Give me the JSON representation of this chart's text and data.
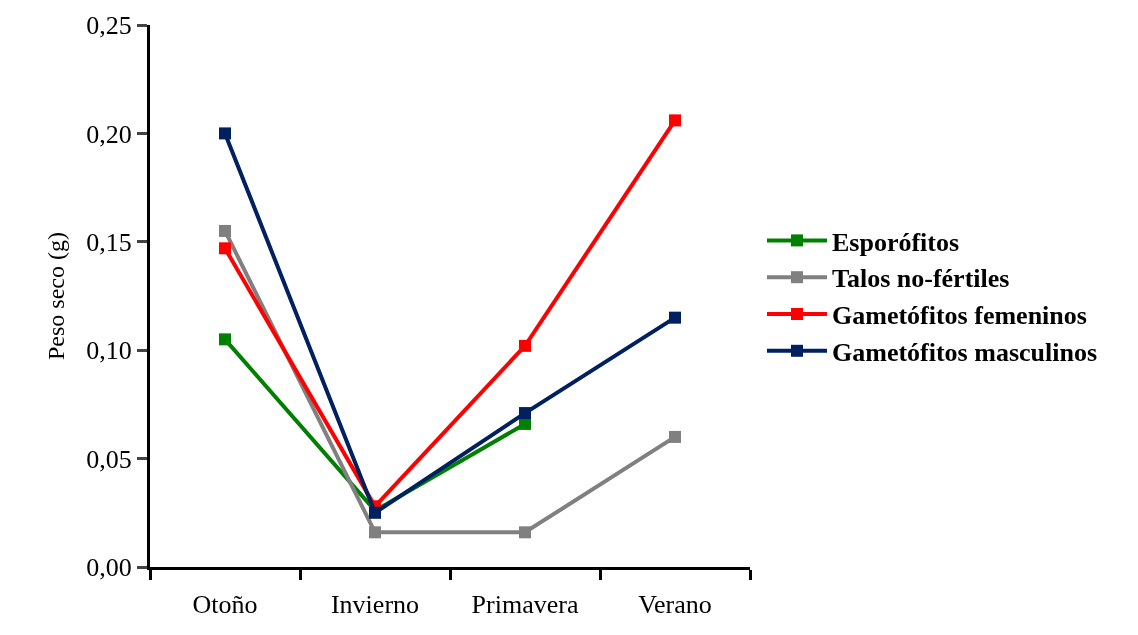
{
  "chart_data": {
    "type": "line",
    "ylabel": "Peso seco (g)",
    "categories": [
      "Otoño",
      "Invierno",
      "Primavera",
      "Verano"
    ],
    "series": [
      {
        "name": "Esporófitos",
        "color": "#008000",
        "values": [
          0.105,
          0.026,
          0.066,
          null
        ]
      },
      {
        "name": "Talos no-fértiles",
        "color": "#808080",
        "values": [
          0.155,
          0.016,
          0.016,
          0.06
        ]
      },
      {
        "name": "Gametófitos femeninos",
        "color": "#ff0000",
        "values": [
          0.147,
          0.028,
          0.102,
          0.206
        ]
      },
      {
        "name": "Gametófitos masculinos",
        "color": "#002060",
        "values": [
          0.2,
          0.025,
          0.071,
          0.115
        ]
      }
    ],
    "ylim": [
      0,
      0.25
    ],
    "yticks": [
      {
        "value": 0,
        "label": "0,00"
      },
      {
        "value": 0.05,
        "label": "0,05"
      },
      {
        "value": 0.1,
        "label": "0,10"
      },
      {
        "value": 0.15,
        "label": "0,15"
      },
      {
        "value": 0.2,
        "label": "0,20"
      },
      {
        "value": 0.25,
        "label": "0,25"
      }
    ],
    "legend": "right",
    "marker": "square",
    "line_style": "solid"
  }
}
